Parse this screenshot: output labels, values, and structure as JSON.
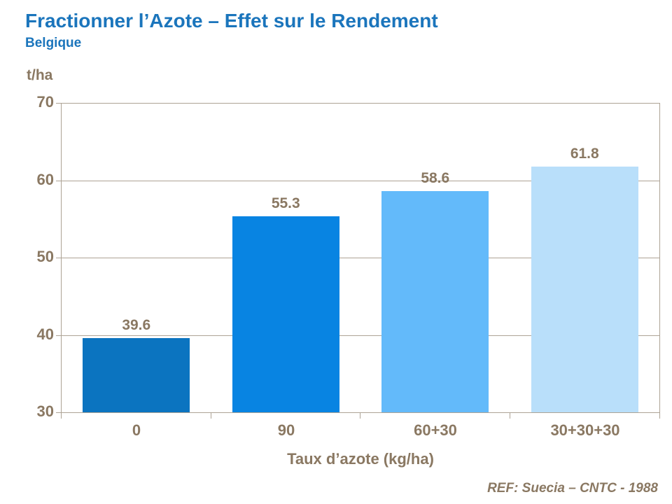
{
  "title": "Fractionner l’Azote – Effet sur le Rendement",
  "subtitle": "Belgique",
  "footer_ref": "REF: Suecia – CNTC - 1988",
  "colors": {
    "title_blue": "#1B75BC",
    "axis_text": "#8A7862",
    "grid_line": "#ADA395",
    "bar_colors": [
      "#0B74C0",
      "#0884E2",
      "#63BAFA",
      "#B9DFFA"
    ]
  },
  "chart_data": {
    "type": "bar",
    "categories": [
      "0",
      "90",
      "60+30",
      "30+30+30"
    ],
    "values": [
      39.6,
      55.3,
      58.6,
      61.8
    ],
    "value_labels": [
      "39.6",
      "55.3",
      "58.6",
      "61.8"
    ],
    "title": "Fractionner l’Azote – Effet sur le Rendement",
    "subtitle": "Belgique",
    "xlabel": "Taux d’azote (kg/ha)",
    "ylabel": "t/ha",
    "ylim": [
      30,
      70
    ],
    "yticks": [
      30,
      40,
      50,
      60,
      70
    ],
    "grid": true,
    "legend": false
  }
}
